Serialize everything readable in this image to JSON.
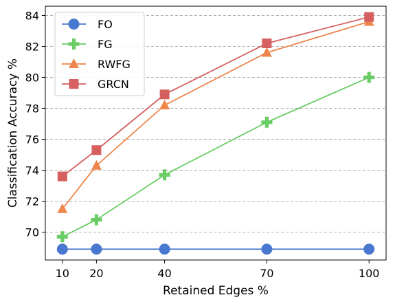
{
  "chart_data": {
    "type": "line",
    "title": "",
    "xlabel": "Retained Edges %",
    "ylabel": "Classification Accuracy %",
    "x": [
      10,
      20,
      40,
      70,
      100
    ],
    "x_ticks": [
      10,
      20,
      40,
      70,
      100
    ],
    "y_ticks": [
      70,
      72,
      74,
      76,
      78,
      80,
      82,
      84
    ],
    "xlim": [
      5,
      105
    ],
    "ylim": [
      68.2,
      84.6
    ],
    "grid": "horizontal dashed",
    "legend_position": "top-left",
    "series": [
      {
        "name": "FO",
        "values": [
          68.9,
          68.9,
          68.9,
          68.9,
          68.9
        ],
        "color": "#4878cf",
        "marker": "circle"
      },
      {
        "name": "FG",
        "values": [
          69.7,
          70.8,
          73.7,
          77.1,
          80.0
        ],
        "color": "#6acc64",
        "marker": "plus"
      },
      {
        "name": "RWFG",
        "values": [
          71.5,
          74.3,
          78.2,
          81.6,
          83.6
        ],
        "color": "#ee854a",
        "marker": "triangle"
      },
      {
        "name": "GRCN",
        "values": [
          73.6,
          75.3,
          78.9,
          82.2,
          83.9
        ],
        "color": "#d65f5f",
        "marker": "square"
      }
    ]
  }
}
